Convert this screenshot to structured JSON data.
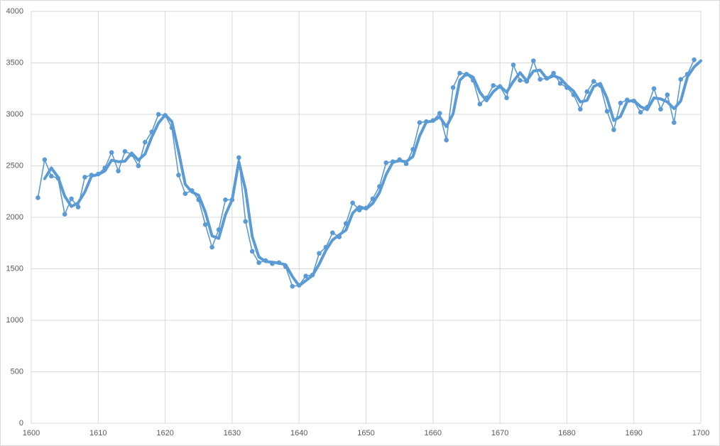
{
  "chart_data": {
    "type": "line",
    "x": [
      1601,
      1602,
      1603,
      1604,
      1605,
      1606,
      1607,
      1608,
      1609,
      1610,
      1611,
      1612,
      1613,
      1614,
      1615,
      1616,
      1617,
      1618,
      1619,
      1620,
      1621,
      1622,
      1623,
      1624,
      1625,
      1626,
      1627,
      1628,
      1629,
      1630,
      1631,
      1632,
      1633,
      1634,
      1635,
      1636,
      1637,
      1638,
      1639,
      1640,
      1641,
      1642,
      1643,
      1644,
      1645,
      1646,
      1647,
      1648,
      1649,
      1650,
      1651,
      1652,
      1653,
      1654,
      1655,
      1656,
      1657,
      1658,
      1659,
      1660,
      1661,
      1662,
      1663,
      1664,
      1665,
      1666,
      1667,
      1668,
      1669,
      1670,
      1671,
      1672,
      1673,
      1674,
      1675,
      1676,
      1677,
      1678,
      1679,
      1680,
      1681,
      1682,
      1683,
      1684,
      1685,
      1686,
      1687,
      1688,
      1689,
      1690,
      1691,
      1692,
      1693,
      1694,
      1695,
      1696,
      1697,
      1698,
      1699,
      1700
    ],
    "series": [
      {
        "color": "#5b9bd5",
        "markers": true,
        "values": [
          2190,
          2560,
          2400,
          2380,
          2030,
          2180,
          2100,
          2390,
          2410,
          2420,
          2480,
          2630,
          2450,
          2640,
          2610,
          2500,
          2730,
          2830,
          3000,
          2990,
          2870,
          2410,
          2230,
          2260,
          2170,
          1930,
          1710,
          1880,
          2170,
          2170,
          2580,
          1960,
          1670,
          1560,
          1580,
          1550,
          1560,
          1520,
          1330,
          1340,
          1430,
          1440,
          1650,
          1710,
          1850,
          1810,
          1940,
          2140,
          2070,
          2090,
          2180,
          2300,
          2530,
          2540,
          2560,
          2520,
          2660,
          2920,
          2930,
          2940,
          3010,
          2750,
          3260,
          3400,
          3390,
          3330,
          3100,
          3160,
          3280,
          3270,
          3160,
          3480,
          3330,
          3320,
          3520,
          3340,
          3350,
          3400,
          3300,
          3260,
          3190,
          3050,
          3220,
          3320,
          3280,
          3030,
          2850,
          3110,
          3140,
          3130,
          3020,
          3070,
          3250,
          3050,
          3190,
          2920,
          3340,
          3390,
          3530,
          null
        ]
      },
      {
        "color": "#5b9bd5",
        "markers": false,
        "values": [
          null,
          2375,
          2480,
          2390,
          2205,
          2105,
          2140,
          2245,
          2400,
          2415,
          2450,
          2555,
          2540,
          2545,
          2625,
          2555,
          2615,
          2780,
          2915,
          2995,
          2930,
          2640,
          2320,
          2245,
          2215,
          2050,
          1820,
          1795,
          2025,
          2170,
          2540,
          2270,
          1815,
          1615,
          1570,
          1565,
          1555,
          1540,
          1425,
          1335,
          1385,
          1435,
          1545,
          1680,
          1780,
          1830,
          1875,
          2040,
          2105,
          2080,
          2135,
          2240,
          2415,
          2535,
          2550,
          2540,
          2590,
          2790,
          2925,
          2935,
          2975,
          2880,
          3005,
          3330,
          3395,
          3360,
          3215,
          3130,
          3220,
          3275,
          3215,
          3320,
          3405,
          3325,
          3420,
          3430,
          3345,
          3375,
          3350,
          3280,
          3225,
          3120,
          3135,
          3270,
          3300,
          3155,
          2940,
          2980,
          3125,
          3135,
          3075,
          3045,
          3160,
          3150,
          3120,
          3055,
          3130,
          3365,
          3460,
          3520
        ]
      }
    ],
    "xlim": [
      1600,
      1700
    ],
    "xticks": [
      1600,
      1610,
      1620,
      1630,
      1640,
      1650,
      1660,
      1670,
      1680,
      1690,
      1700
    ],
    "ylim": [
      0,
      4000
    ],
    "yticks": [
      0,
      500,
      1000,
      1500,
      2000,
      2500,
      3000,
      3500,
      4000
    ],
    "grid": true
  }
}
